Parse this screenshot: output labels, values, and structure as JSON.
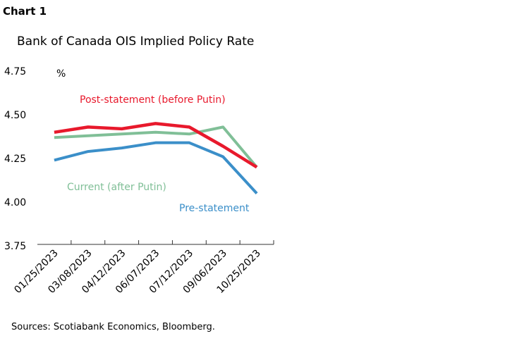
{
  "chart_label": "Chart 1",
  "source": "Sources: Scotiabank Economics, Bloomberg.",
  "chart_data": {
    "type": "line",
    "title": "Bank of Canada OIS Implied Policy Rate",
    "ylabel": "%",
    "ylim": [
      3.75,
      4.75
    ],
    "yticks": [
      "4.75",
      "4.50",
      "4.25",
      "4.00",
      "3.75"
    ],
    "grid": false,
    "categories": [
      "01/25/2023",
      "03/08/2023",
      "04/12/2023",
      "06/07/2023",
      "07/12/2023",
      "09/06/2023",
      "10/25/2023"
    ],
    "series": [
      {
        "name": "Current (after Putin)",
        "color": "#80bf97",
        "values": [
          4.37,
          4.38,
          4.39,
          4.4,
          4.39,
          4.43,
          4.2
        ]
      },
      {
        "name": "Pre-statement",
        "color": "#3b8fc9",
        "values": [
          4.24,
          4.29,
          4.31,
          4.34,
          4.34,
          4.26,
          4.05
        ]
      },
      {
        "name": "Post-statement (before Putin)",
        "color": "#e8192c",
        "values": [
          4.4,
          4.43,
          4.42,
          4.45,
          4.43,
          4.32,
          4.2
        ]
      }
    ]
  }
}
